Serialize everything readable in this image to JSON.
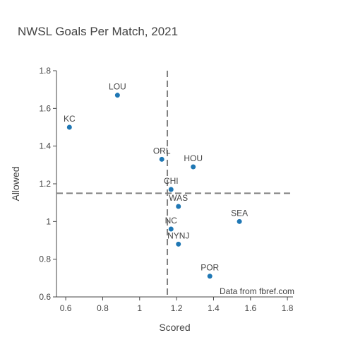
{
  "chart_data": {
    "type": "scatter",
    "title": "NWSL Goals Per Match, 2021",
    "xlabel": "Scored",
    "ylabel": "Allowed",
    "xlim": [
      0.55,
      1.83
    ],
    "ylim": [
      0.6,
      1.8
    ],
    "xticks": [
      0.6,
      0.8,
      1,
      1.2,
      1.4,
      1.6,
      1.8
    ],
    "yticks": [
      0.6,
      0.8,
      1,
      1.2,
      1.4,
      1.6,
      1.8
    ],
    "grid": false,
    "marker_color": "#1f77b4",
    "reference_lines": {
      "x": 1.15,
      "y": 1.15,
      "style": "dashed",
      "color": "#808080"
    },
    "annotation": "Data from fbref.com",
    "points": [
      {
        "label": "LOU",
        "x": 0.88,
        "y": 1.67
      },
      {
        "label": "KC",
        "x": 0.62,
        "y": 1.5
      },
      {
        "label": "ORL",
        "x": 1.12,
        "y": 1.33
      },
      {
        "label": "HOU",
        "x": 1.29,
        "y": 1.29
      },
      {
        "label": "CHI",
        "x": 1.17,
        "y": 1.17
      },
      {
        "label": "WAS",
        "x": 1.21,
        "y": 1.08
      },
      {
        "label": "SEA",
        "x": 1.54,
        "y": 1.0
      },
      {
        "label": "NC",
        "x": 1.17,
        "y": 0.96
      },
      {
        "label": "NYNJ",
        "x": 1.21,
        "y": 0.88
      },
      {
        "label": "POR",
        "x": 1.38,
        "y": 0.71
      }
    ]
  }
}
